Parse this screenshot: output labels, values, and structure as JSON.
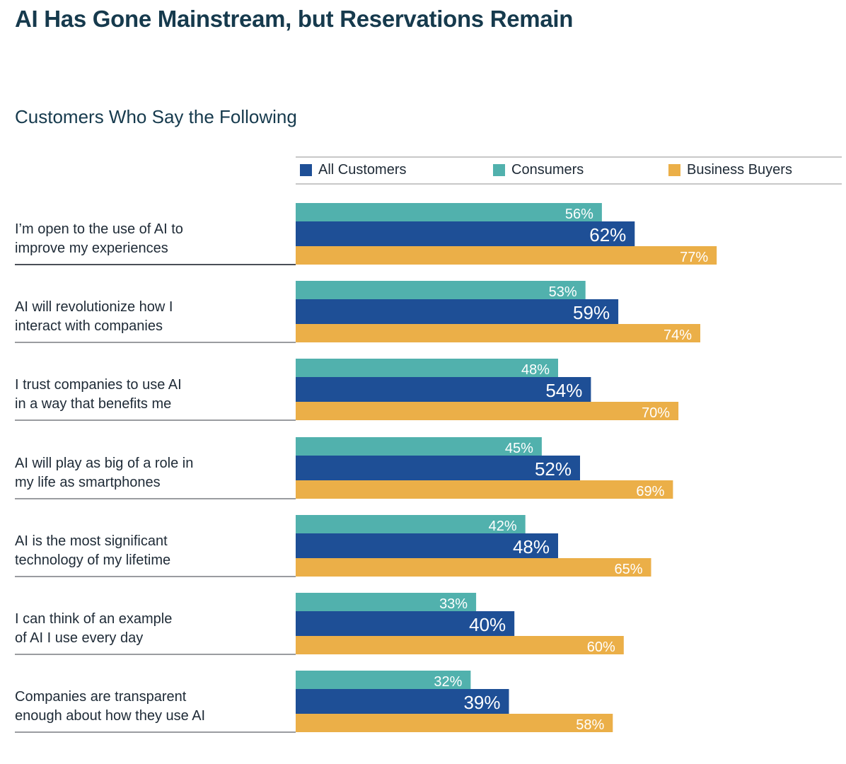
{
  "title": "AI Has Gone Mainstream, but Reservations Remain",
  "subtitle": "Customers Who Say the Following",
  "legend": [
    {
      "name": "All Customers",
      "color": "#1e4f96"
    },
    {
      "name": "Consumers",
      "color": "#51b1ad"
    },
    {
      "name": "Business Buyers",
      "color": "#ebaf48"
    }
  ],
  "chart_data": {
    "type": "bar",
    "orientation": "horizontal",
    "title": "AI Has Gone Mainstream, but Reservations Remain",
    "subtitle": "Customers Who Say the Following",
    "xlabel": "",
    "ylabel": "",
    "unit": "%",
    "xlim": [
      0,
      100
    ],
    "grid": false,
    "legend_position": "top",
    "categories": [
      "I’m open to the use of AI to improve my experiences",
      "AI will revolutionize how I interact with companies",
      "I trust companies to use AI in a way that benefits me",
      "AI will play as big of a role in my life as smartphones",
      "AI is the most significant technology of my lifetime",
      "I can think of an example of AI I use every day",
      "Companies are transparent enough about how they use AI"
    ],
    "category_lines": [
      [
        "I’m open to the use of AI to",
        "improve my experiences"
      ],
      [
        "AI will revolutionize how I",
        "interact with companies"
      ],
      [
        "I trust companies to use AI",
        "in a way that benefits me"
      ],
      [
        "AI will play as big of a role in",
        "my life as smartphones"
      ],
      [
        "AI is the most significant",
        "technology of my lifetime"
      ],
      [
        "I can think of an example",
        "of AI I use every day"
      ],
      [
        "Companies are transparent",
        "enough about how they use AI"
      ]
    ],
    "series": [
      {
        "name": "Consumers",
        "color": "#51b1ad",
        "values": [
          56,
          53,
          48,
          45,
          42,
          33,
          32
        ]
      },
      {
        "name": "All Customers",
        "color": "#1e4f96",
        "values": [
          62,
          59,
          54,
          52,
          48,
          40,
          39
        ]
      },
      {
        "name": "Business Buyers",
        "color": "#ebaf48",
        "values": [
          77,
          74,
          70,
          69,
          65,
          60,
          58
        ]
      }
    ]
  }
}
